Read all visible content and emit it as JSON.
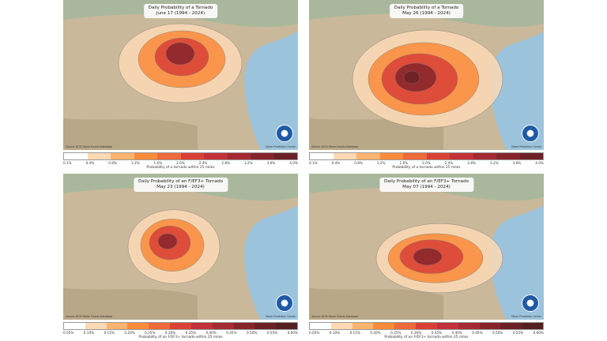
{
  "panels": [
    {
      "title": "Daily Probability of a Tornado",
      "date": "June 17 (1994 - 2024)",
      "source": "Source: NCEI Storm Events Database",
      "center": "Storm Prediction Center",
      "logo": "NOAA",
      "colorbar_label": "Probability of a tornado within 25 miles",
      "ticks": [
        "0.1%",
        "0.4%",
        "0.8%",
        "1.2%",
        "1.6%",
        "2.0%",
        "2.4%",
        "2.8%",
        "3.2%",
        "3.6%",
        "4.0%"
      ]
    },
    {
      "title": "Daily Probability of a Tornado",
      "date": "May 26 (1994 - 2024)",
      "source": "Source: NCEI Storm Events Database",
      "center": "Storm Prediction Center",
      "logo": "NOAA",
      "colorbar_label": "Probability of a tornado within 25 miles",
      "ticks": [
        "0.1%",
        "0.4%",
        "0.8%",
        "1.2%",
        "1.6%",
        "2.0%",
        "2.4%",
        "2.8%",
        "3.2%",
        "3.6%",
        "4.0%"
      ]
    },
    {
      "title": "Daily Probability of an F/EF3+ Tornado",
      "date": "May 23 (1994 - 2024)",
      "source": "Source: NCEI Storm Events Database",
      "center": "Storm Prediction Center",
      "logo": "NOAA",
      "colorbar_label": "Probability of an F/EF3+ tornado within 25 miles",
      "ticks": [
        "0.05%",
        "0.10%",
        "0.15%",
        "0.20%",
        "0.25%",
        "0.30%",
        "0.35%",
        "0.40%",
        "0.45%",
        "0.50%",
        "0.55%",
        "0.60%"
      ]
    },
    {
      "title": "Daily Probability of an F/EF3+ Tornado",
      "date": "May 07 (1994 - 2024)",
      "source": "Source: NCEI Storm Events Database",
      "center": "Storm Prediction Center",
      "logo": "NOAA",
      "colorbar_label": "Probability of an F/EF3+ tornado within 25 miles",
      "ticks": [
        "0.05%",
        "0.10%",
        "0.15%",
        "0.20%",
        "0.25%",
        "0.30%",
        "0.35%",
        "0.40%",
        "0.45%",
        "0.50%",
        "0.55%",
        "0.60%"
      ]
    }
  ],
  "colors": {
    "scale": [
      "#ffffff",
      "#fdd9b5",
      "#fdb46e",
      "#f98b3a",
      "#ee6a3a",
      "#d94136",
      "#c2323a",
      "#a52a33",
      "#86242c",
      "#6b2126",
      "#552020"
    ]
  }
}
